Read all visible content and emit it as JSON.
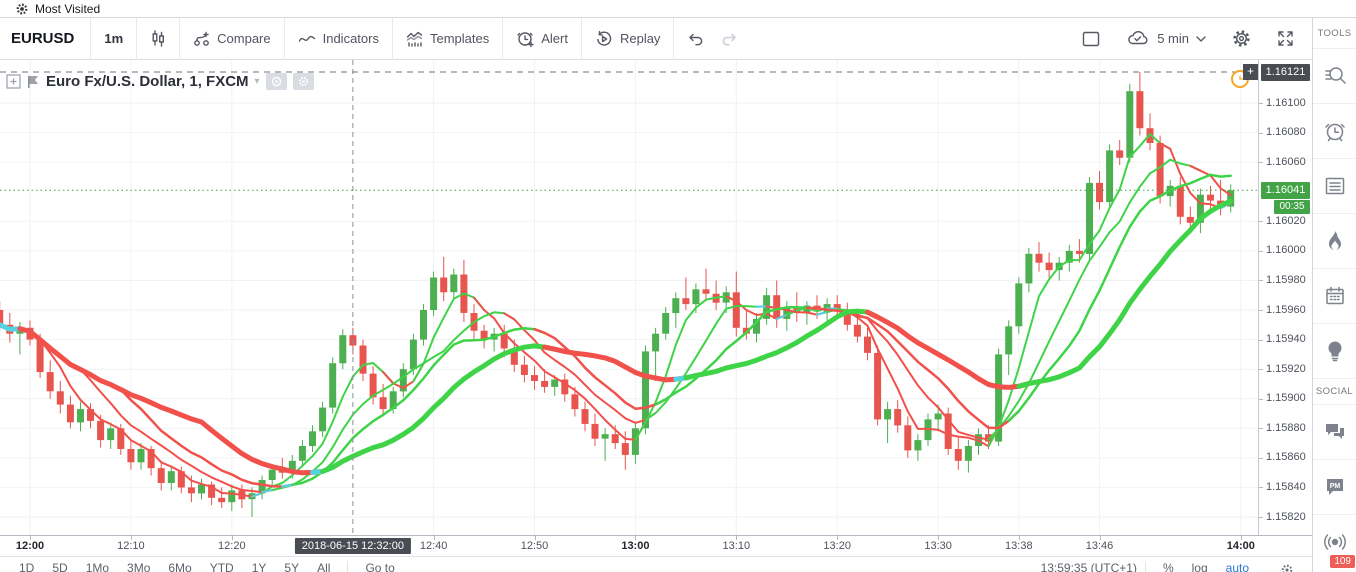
{
  "browser_bar": {
    "label": "Most Visited"
  },
  "toolbar": {
    "symbol": "EURUSD",
    "interval": "1m",
    "compare_label": "Compare",
    "indicators_label": "Indicators",
    "templates_label": "Templates",
    "alert_label": "Alert",
    "replay_label": "Replay",
    "saved_layout": "5 min"
  },
  "chart": {
    "title": "Euro Fx/U.S. Dollar, 1, FXCM",
    "high_badge": "1.16121",
    "last_badge": "1.16041",
    "countdown": "00:35",
    "plus_tile": "+",
    "crosshair_label": "2018-06-15 12:32:00"
  },
  "price_axis": {
    "ticks": [
      "1.16100",
      "1.16080",
      "1.16060",
      "1.16020",
      "1.16000",
      "1.15980",
      "1.15960",
      "1.15940",
      "1.15920",
      "1.15900",
      "1.15880",
      "1.15860",
      "1.15840",
      "1.15820"
    ]
  },
  "time_axis": {
    "ticks": [
      {
        "label": "12:00",
        "min": 0,
        "bold": true
      },
      {
        "label": "12:10",
        "min": 10,
        "bold": false
      },
      {
        "label": "12:20",
        "min": 20,
        "bold": false
      },
      {
        "label": "12:40",
        "min": 40,
        "bold": false
      },
      {
        "label": "12:50",
        "min": 50,
        "bold": false
      },
      {
        "label": "13:00",
        "min": 60,
        "bold": true
      },
      {
        "label": "13:10",
        "min": 70,
        "bold": false
      },
      {
        "label": "13:20",
        "min": 80,
        "bold": false
      },
      {
        "label": "13:30",
        "min": 90,
        "bold": false
      },
      {
        "label": "13:38",
        "min": 98,
        "bold": false
      },
      {
        "label": "13:46",
        "min": 106,
        "bold": false
      },
      {
        "label": "14:00",
        "min": 120,
        "bold": true
      }
    ]
  },
  "chart_data": {
    "type": "candlestick",
    "symbol": "EURUSD",
    "interval_minutes": 1,
    "start_time": "11:57",
    "start_offset_min": -3,
    "y_axis": {
      "top_price": 1.16121,
      "bottom_price": 1.1582
    },
    "crosshair": {
      "min": 32,
      "label": "2018-06-15 12:32:00"
    },
    "alert_line_price": 1.16121,
    "last_price": 1.16041,
    "indicator": {
      "name": "sma-ribbon",
      "periods": [
        5,
        9,
        13,
        21
      ],
      "widths": [
        2,
        2,
        2.5,
        5
      ]
    },
    "candles": [
      [
        1.1596,
        1.15966,
        1.15946,
        1.1595
      ],
      [
        1.1595,
        1.15958,
        1.15938,
        1.15944
      ],
      [
        1.15944,
        1.15952,
        1.1593,
        1.15948
      ],
      [
        1.15948,
        1.15953,
        1.15936,
        1.1594
      ],
      [
        1.1594,
        1.15944,
        1.15914,
        1.15918
      ],
      [
        1.15918,
        1.15926,
        1.159,
        1.15905
      ],
      [
        1.15905,
        1.15912,
        1.1589,
        1.15896
      ],
      [
        1.15896,
        1.15902,
        1.1588,
        1.15884
      ],
      [
        1.15884,
        1.15898,
        1.15878,
        1.15893
      ],
      [
        1.15893,
        1.15897,
        1.1588,
        1.15885
      ],
      [
        1.15885,
        1.15889,
        1.15867,
        1.15872
      ],
      [
        1.15872,
        1.15884,
        1.15866,
        1.1588
      ],
      [
        1.1588,
        1.15883,
        1.15862,
        1.15866
      ],
      [
        1.15866,
        1.15872,
        1.15852,
        1.15857
      ],
      [
        1.15857,
        1.1587,
        1.15852,
        1.15866
      ],
      [
        1.15866,
        1.15868,
        1.15848,
        1.15853
      ],
      [
        1.15853,
        1.15858,
        1.15838,
        1.15843
      ],
      [
        1.15843,
        1.15855,
        1.15838,
        1.15851
      ],
      [
        1.15851,
        1.15854,
        1.15836,
        1.1584
      ],
      [
        1.1584,
        1.15848,
        1.1583,
        1.15836
      ],
      [
        1.15836,
        1.15846,
        1.15832,
        1.15842
      ],
      [
        1.15842,
        1.15844,
        1.15828,
        1.15833
      ],
      [
        1.15833,
        1.1584,
        1.15826,
        1.1583
      ],
      [
        1.1583,
        1.15842,
        1.15824,
        1.15838
      ],
      [
        1.15838,
        1.15842,
        1.15826,
        1.15832
      ],
      [
        1.15832,
        1.1584,
        1.1582,
        1.15836
      ],
      [
        1.15836,
        1.15848,
        1.15832,
        1.15845
      ],
      [
        1.15845,
        1.15856,
        1.1584,
        1.15852
      ],
      [
        1.15852,
        1.1586,
        1.15846,
        1.1585
      ],
      [
        1.1585,
        1.15862,
        1.15846,
        1.15858
      ],
      [
        1.15858,
        1.15872,
        1.15854,
        1.15868
      ],
      [
        1.15868,
        1.15882,
        1.15864,
        1.15878
      ],
      [
        1.15878,
        1.15898,
        1.15874,
        1.15894
      ],
      [
        1.15894,
        1.15928,
        1.1589,
        1.15924
      ],
      [
        1.15924,
        1.15947,
        1.1592,
        1.15943
      ],
      [
        1.15943,
        1.15948,
        1.1593,
        1.15936
      ],
      [
        1.15936,
        1.1594,
        1.15912,
        1.15917
      ],
      [
        1.15917,
        1.15922,
        1.15896,
        1.15901
      ],
      [
        1.15901,
        1.1591,
        1.15888,
        1.15893
      ],
      [
        1.15893,
        1.15908,
        1.1589,
        1.15905
      ],
      [
        1.15905,
        1.15924,
        1.15901,
        1.1592
      ],
      [
        1.1592,
        1.15944,
        1.15916,
        1.1594
      ],
      [
        1.1594,
        1.15964,
        1.15936,
        1.1596
      ],
      [
        1.1596,
        1.15986,
        1.15956,
        1.15982
      ],
      [
        1.15982,
        1.15996,
        1.15966,
        1.15972
      ],
      [
        1.15972,
        1.15988,
        1.15968,
        1.15984
      ],
      [
        1.15984,
        1.15994,
        1.15952,
        1.15958
      ],
      [
        1.15958,
        1.15964,
        1.1594,
        1.15946
      ],
      [
        1.15946,
        1.1595,
        1.15934,
        1.1594
      ],
      [
        1.1594,
        1.15948,
        1.15932,
        1.15944
      ],
      [
        1.15944,
        1.1595,
        1.15928,
        1.15934
      ],
      [
        1.15934,
        1.1594,
        1.15918,
        1.15923
      ],
      [
        1.15923,
        1.15929,
        1.15911,
        1.15916
      ],
      [
        1.15916,
        1.15922,
        1.15906,
        1.15912
      ],
      [
        1.15912,
        1.1592,
        1.15904,
        1.15908
      ],
      [
        1.15908,
        1.15916,
        1.15902,
        1.15913
      ],
      [
        1.15913,
        1.15917,
        1.15898,
        1.15903
      ],
      [
        1.15903,
        1.15908,
        1.15888,
        1.15893
      ],
      [
        1.15893,
        1.15898,
        1.15878,
        1.15883
      ],
      [
        1.15883,
        1.1589,
        1.15868,
        1.15873
      ],
      [
        1.15873,
        1.1588,
        1.15858,
        1.15876
      ],
      [
        1.15876,
        1.15882,
        1.15866,
        1.1587
      ],
      [
        1.1587,
        1.15878,
        1.15852,
        1.15862
      ],
      [
        1.15862,
        1.15884,
        1.15856,
        1.1588
      ],
      [
        1.1588,
        1.15936,
        1.15876,
        1.15932
      ],
      [
        1.15932,
        1.15948,
        1.15912,
        1.15944
      ],
      [
        1.15944,
        1.15962,
        1.1594,
        1.15958
      ],
      [
        1.15958,
        1.15972,
        1.15948,
        1.15968
      ],
      [
        1.15968,
        1.15982,
        1.1596,
        1.15964
      ],
      [
        1.15964,
        1.15978,
        1.15958,
        1.15974
      ],
      [
        1.15974,
        1.15988,
        1.15966,
        1.15971
      ],
      [
        1.15971,
        1.1598,
        1.1596,
        1.15965
      ],
      [
        1.15965,
        1.15976,
        1.15958,
        1.15972
      ],
      [
        1.15972,
        1.15986,
        1.15942,
        1.15948
      ],
      [
        1.15948,
        1.1596,
        1.1594,
        1.15944
      ],
      [
        1.15944,
        1.15958,
        1.15938,
        1.15954
      ],
      [
        1.15954,
        1.15975,
        1.1595,
        1.1597
      ],
      [
        1.1597,
        1.1598,
        1.15948,
        1.15954
      ],
      [
        1.15954,
        1.15966,
        1.15946,
        1.15962
      ],
      [
        1.15962,
        1.15972,
        1.15952,
        1.15958
      ],
      [
        1.15958,
        1.15966,
        1.1595,
        1.15963
      ],
      [
        1.15963,
        1.1597,
        1.15954,
        1.15959
      ],
      [
        1.15959,
        1.15968,
        1.15952,
        1.15964
      ],
      [
        1.15964,
        1.1597,
        1.15956,
        1.1596
      ],
      [
        1.1596,
        1.15965,
        1.15946,
        1.1595
      ],
      [
        1.1595,
        1.15956,
        1.15938,
        1.15942
      ],
      [
        1.15942,
        1.15948,
        1.15926,
        1.15931
      ],
      [
        1.15931,
        1.15936,
        1.15882,
        1.15886
      ],
      [
        1.15886,
        1.15898,
        1.1587,
        1.15893
      ],
      [
        1.15893,
        1.15899,
        1.15877,
        1.15882
      ],
      [
        1.15882,
        1.15888,
        1.1586,
        1.15865
      ],
      [
        1.15865,
        1.15876,
        1.15858,
        1.15872
      ],
      [
        1.15872,
        1.1589,
        1.15868,
        1.15886
      ],
      [
        1.15886,
        1.15896,
        1.15878,
        1.1589
      ],
      [
        1.1589,
        1.15894,
        1.15862,
        1.15866
      ],
      [
        1.15866,
        1.15874,
        1.15852,
        1.15858
      ],
      [
        1.15858,
        1.15872,
        1.1585,
        1.15868
      ],
      [
        1.15868,
        1.1588,
        1.15862,
        1.15876
      ],
      [
        1.15876,
        1.15882,
        1.15866,
        1.15871
      ],
      [
        1.15871,
        1.15934,
        1.15868,
        1.1593
      ],
      [
        1.1593,
        1.15953,
        1.15916,
        1.15949
      ],
      [
        1.15949,
        1.15982,
        1.15944,
        1.15978
      ],
      [
        1.15978,
        1.16002,
        1.15972,
        1.15998
      ],
      [
        1.15998,
        1.16006,
        1.15986,
        1.15992
      ],
      [
        1.15992,
        1.15999,
        1.15982,
        1.15987
      ],
      [
        1.15987,
        1.15996,
        1.1598,
        1.15992
      ],
      [
        1.15992,
        1.16004,
        1.15986,
        1.16
      ],
      [
        1.16,
        1.16008,
        1.15992,
        1.15998
      ],
      [
        1.15998,
        1.1605,
        1.15994,
        1.16046
      ],
      [
        1.16046,
        1.16054,
        1.16028,
        1.16033
      ],
      [
        1.16033,
        1.16072,
        1.16029,
        1.16068
      ],
      [
        1.16068,
        1.16075,
        1.16058,
        1.16063
      ],
      [
        1.16063,
        1.16113,
        1.1606,
        1.16108
      ],
      [
        1.16108,
        1.16121,
        1.16078,
        1.16083
      ],
      [
        1.16083,
        1.16093,
        1.16068,
        1.16073
      ],
      [
        1.16073,
        1.16078,
        1.16032,
        1.16037
      ],
      [
        1.16037,
        1.16048,
        1.1603,
        1.16044
      ],
      [
        1.16044,
        1.1605,
        1.16018,
        1.16023
      ],
      [
        1.16023,
        1.1603,
        1.16014,
        1.16019
      ],
      [
        1.16019,
        1.16042,
        1.16012,
        1.16038
      ],
      [
        1.16038,
        1.16044,
        1.16028,
        1.16034
      ],
      [
        1.16034,
        1.16048,
        1.16024,
        1.1603
      ],
      [
        1.1603,
        1.16045,
        1.16026,
        1.16041
      ]
    ]
  },
  "colors": {
    "up": "#4caf50",
    "down": "#e8544e",
    "ribbon_up": "#3fd348",
    "ribbon_down": "#f1504b",
    "ribbon_flat": "#55d3e0",
    "last_price_line": "#43a347",
    "alert_line": "#70737b",
    "crosshair": "#8b8e97",
    "grid": "#f0f2f6",
    "marker_orange": "#f5a623"
  },
  "sidebar": {
    "tools_label": "TOOLS",
    "social_label": "SOCIAL",
    "streams_badge": "109"
  },
  "bottom_bar": {
    "ranges": [
      "1D",
      "5D",
      "1Mo",
      "3Mo",
      "6Mo",
      "YTD",
      "1Y",
      "5Y",
      "All"
    ],
    "goto_label": "Go to",
    "clock": "13:59:35 (UTC+1)",
    "percent_label": "%",
    "log_label": "log",
    "auto_label": "auto"
  }
}
